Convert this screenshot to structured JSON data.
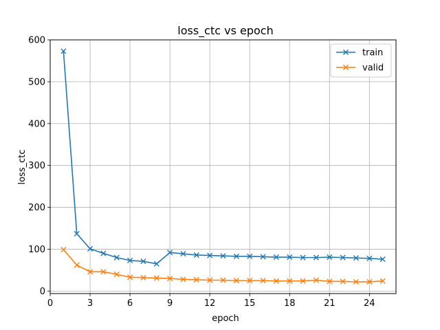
{
  "chart_data": {
    "type": "line",
    "title": "loss_ctc vs epoch",
    "xlabel": "epoch",
    "ylabel": "loss_ctc",
    "xlim": [
      0,
      26
    ],
    "ylim": [
      -6,
      600
    ],
    "xticks": [
      0,
      3,
      6,
      9,
      12,
      15,
      18,
      21,
      24
    ],
    "yticks": [
      0,
      100,
      200,
      300,
      400,
      500,
      600
    ],
    "grid": true,
    "legend_position": "top-right",
    "marker": "x",
    "x": [
      1,
      2,
      3,
      4,
      5,
      6,
      7,
      8,
      9,
      10,
      11,
      12,
      13,
      14,
      15,
      16,
      17,
      18,
      19,
      20,
      21,
      22,
      23,
      24,
      25
    ],
    "series": [
      {
        "name": "train",
        "color": "#1f77b4",
        "values": [
          573,
          137,
          101,
          90,
          80,
          73,
          71,
          65,
          92,
          89,
          86,
          85,
          84,
          83,
          83,
          82,
          81,
          81,
          80,
          80,
          81,
          80,
          79,
          78,
          76
        ]
      },
      {
        "name": "valid",
        "color": "#ff7f0e",
        "values": [
          99,
          62,
          46,
          46,
          40,
          33,
          32,
          31,
          30,
          28,
          27,
          26,
          26,
          25,
          25,
          25,
          24,
          24,
          24,
          26,
          23,
          23,
          22,
          22,
          24
        ]
      }
    ]
  }
}
